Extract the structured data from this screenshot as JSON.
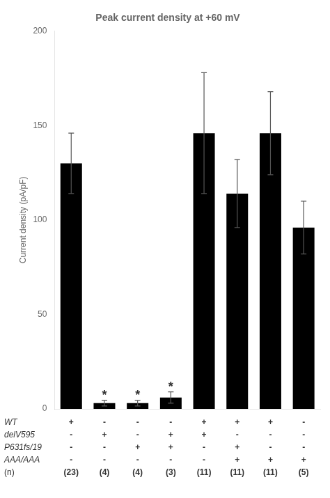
{
  "chart_data": {
    "type": "bar",
    "title": "Peak current density at +60 mV",
    "y_label": "Current density (pA/pF)",
    "categories": [
      null,
      null,
      null,
      null,
      null,
      null,
      null,
      null
    ],
    "values": [
      130,
      3,
      3,
      6,
      146,
      114,
      146,
      96
    ],
    "errors": [
      16,
      1.5,
      1.5,
      3,
      32,
      18,
      22,
      14
    ],
    "color": "#000000",
    "ylim": [
      0,
      200
    ],
    "yticks": [
      0,
      50,
      100,
      150,
      200
    ],
    "grid": false,
    "tick_labels": "y",
    "annotations": [
      {
        "text": "*",
        "index": 1
      },
      {
        "text": "*",
        "index": 2
      },
      {
        "text": "*",
        "index": 3
      }
    ],
    "table": {
      "row_labels": [
        "WT",
        "delV595",
        "P631fs/19",
        "AAA/AAA",
        "(n)"
      ],
      "rows": [
        [
          "+",
          "-",
          "-",
          "-",
          "+",
          "+",
          "+",
          "-"
        ],
        [
          "-",
          "+",
          "-",
          "+",
          "+",
          "-",
          "-",
          "-"
        ],
        [
          "-",
          "-",
          "+",
          "+",
          "-",
          "+",
          "-",
          "-"
        ],
        [
          "-",
          "-",
          "-",
          "-",
          "-",
          "+",
          "+",
          "+"
        ],
        [
          "(23)",
          "(4)",
          "(4)",
          "(3)",
          "(11)",
          "(11)",
          "(11)",
          "(5)"
        ]
      ]
    }
  }
}
